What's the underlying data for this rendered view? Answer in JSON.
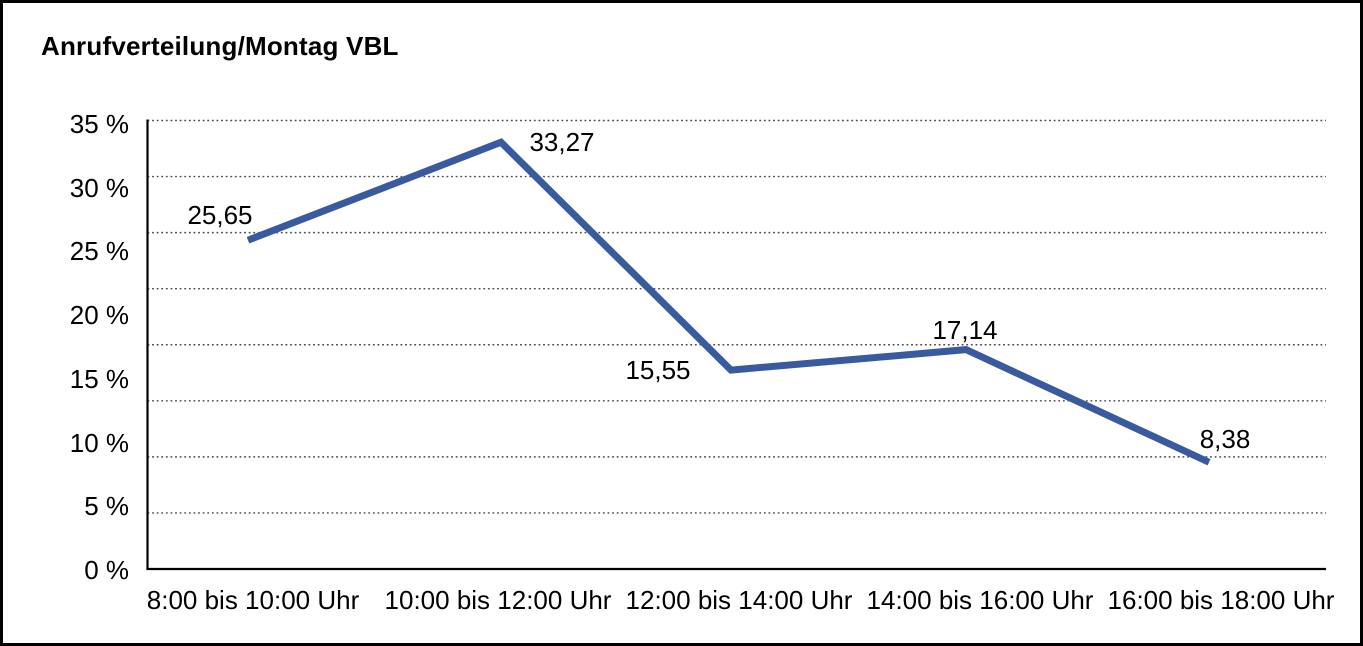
{
  "title": "Anrufverteilung/Montag VBL",
  "chart_data": {
    "type": "line",
    "title": "Anrufverteilung/Montag VBL",
    "categories": [
      "8:00 bis 10:00 Uhr",
      "10:00 bis 12:00 Uhr",
      "12:00 bis 14:00 Uhr",
      "14:00 bis 16:00 Uhr",
      "16:00 bis 18:00 Uhr"
    ],
    "values": [
      25.65,
      33.27,
      15.55,
      17.14,
      8.38
    ],
    "value_labels": [
      "25,65",
      "33,27",
      "15,55",
      "17,14",
      "8,38"
    ],
    "y_tick_labels": [
      "35 %",
      "30 %",
      "25 %",
      "20 %",
      "15 %",
      "10 %",
      "5 %",
      "0 %"
    ],
    "ylim": [
      0,
      35
    ],
    "y_tick_step": 5,
    "xlabel": "",
    "ylabel": "",
    "grid": "horizontal-dotted",
    "legend": "none",
    "colors": {
      "line": "#3A5AA0",
      "grid": "#4a4a4a",
      "axis": "#000000",
      "text": "#000000",
      "background": "#ffffff",
      "frame_border": "#000000"
    }
  }
}
